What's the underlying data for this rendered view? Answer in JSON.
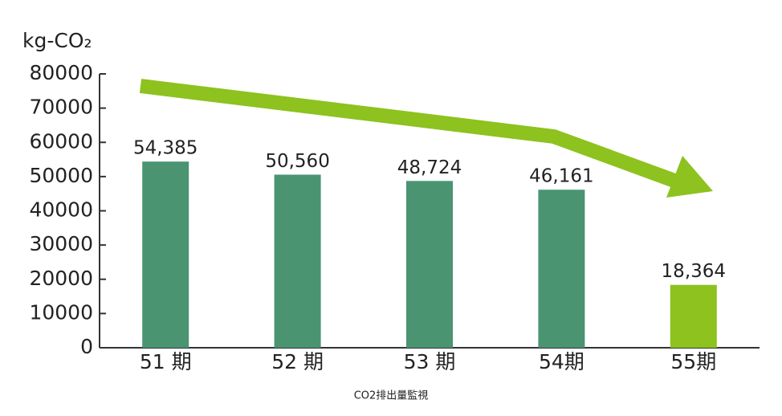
{
  "chart_data": {
    "type": "bar",
    "y_label": "kg-CO₂",
    "caption": "CO2排出量監視",
    "categories": [
      "51 期",
      "52 期",
      "53 期",
      "54期",
      "55期"
    ],
    "values": [
      54385,
      50560,
      48724,
      46161,
      18364
    ],
    "value_labels": [
      "54,385",
      "50,560",
      "48,724",
      "46,161",
      "18,364"
    ],
    "colors": [
      "#4a9472",
      "#4a9472",
      "#4a9472",
      "#4a9472",
      "#8dc21f"
    ],
    "ylim": [
      0,
      80000
    ],
    "yticks": [
      0,
      10000,
      20000,
      30000,
      40000,
      50000,
      60000,
      70000,
      80000
    ]
  }
}
